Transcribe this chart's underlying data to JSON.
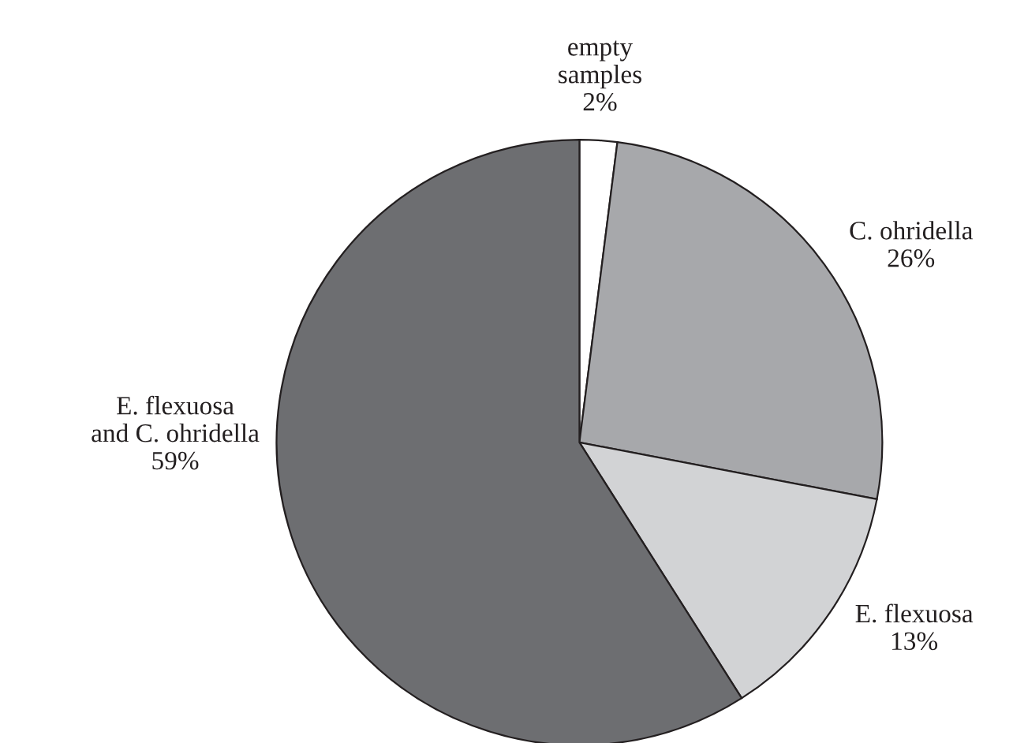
{
  "chart_data": {
    "type": "pie",
    "categories": [
      "empty\nsamples",
      "C. ohridella",
      "E. flexuosa",
      "E. flexuosa\nand C. ohridella"
    ],
    "values": [
      2,
      26,
      13,
      59
    ],
    "value_labels": [
      "2%",
      "26%",
      "13%",
      "59%"
    ],
    "colors": [
      "#ffffff",
      "#a7a8ab",
      "#d2d3d5",
      "#6d6e71"
    ]
  }
}
